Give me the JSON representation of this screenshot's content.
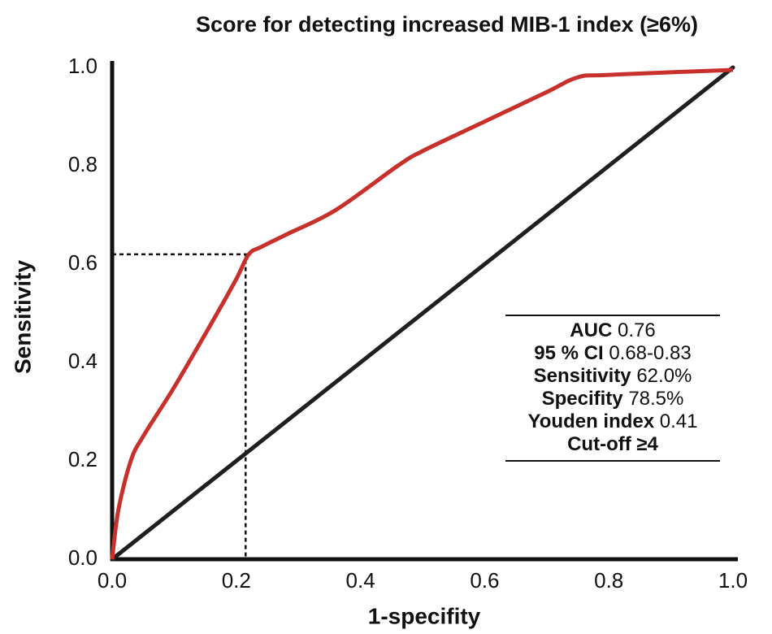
{
  "chart_data": {
    "type": "line",
    "title": "Score for detecting increased MIB-1 index (≥6%)",
    "xlabel": "1-specifity",
    "ylabel": "Sensitivity",
    "xlim": [
      0,
      1
    ],
    "ylim": [
      0,
      1
    ],
    "xticks": [
      {
        "value": 0,
        "label": "0.0"
      },
      0.2,
      0.4,
      0.6,
      0.8,
      {
        "value": 1,
        "label": "1.0"
      }
    ],
    "yticks": [
      {
        "value": 0,
        "label": "0.0"
      },
      0.2,
      0.4,
      0.6,
      0.8,
      {
        "value": 1,
        "label": "1.0"
      }
    ],
    "series": [
      {
        "color": "#c8302c",
        "x": [
          0,
          0.01,
          0.03,
          0.05,
          0.1,
          0.16,
          0.2,
          0.22,
          0.24,
          0.28,
          0.36,
          0.46,
          0.5,
          0.6,
          0.7,
          0.75,
          0.8,
          1.0
        ],
        "values": [
          0,
          0.1,
          0.2,
          0.25,
          0.35,
          0.48,
          0.57,
          0.62,
          0.635,
          0.66,
          0.71,
          0.8,
          0.83,
          0.89,
          0.95,
          0.98,
          0.985,
          0.995
        ]
      }
    ],
    "reference_line": {
      "color": "#1f1f1f",
      "x": [
        0,
        1
      ],
      "values": [
        0,
        1
      ]
    },
    "cutoff_point": {
      "x": 0.215,
      "y": 0.62
    },
    "stats": [
      {
        "label": "AUC",
        "value": "0.76"
      },
      {
        "label": "95 % CI",
        "value": "0.68-0.83"
      },
      {
        "label": "Sensitivity",
        "value": "62.0%"
      },
      {
        "label": "Specifity",
        "value": "78.5%"
      },
      {
        "label": "Youden index",
        "value": "0.41"
      },
      {
        "label": "Cut-off ≥4"
      }
    ]
  }
}
